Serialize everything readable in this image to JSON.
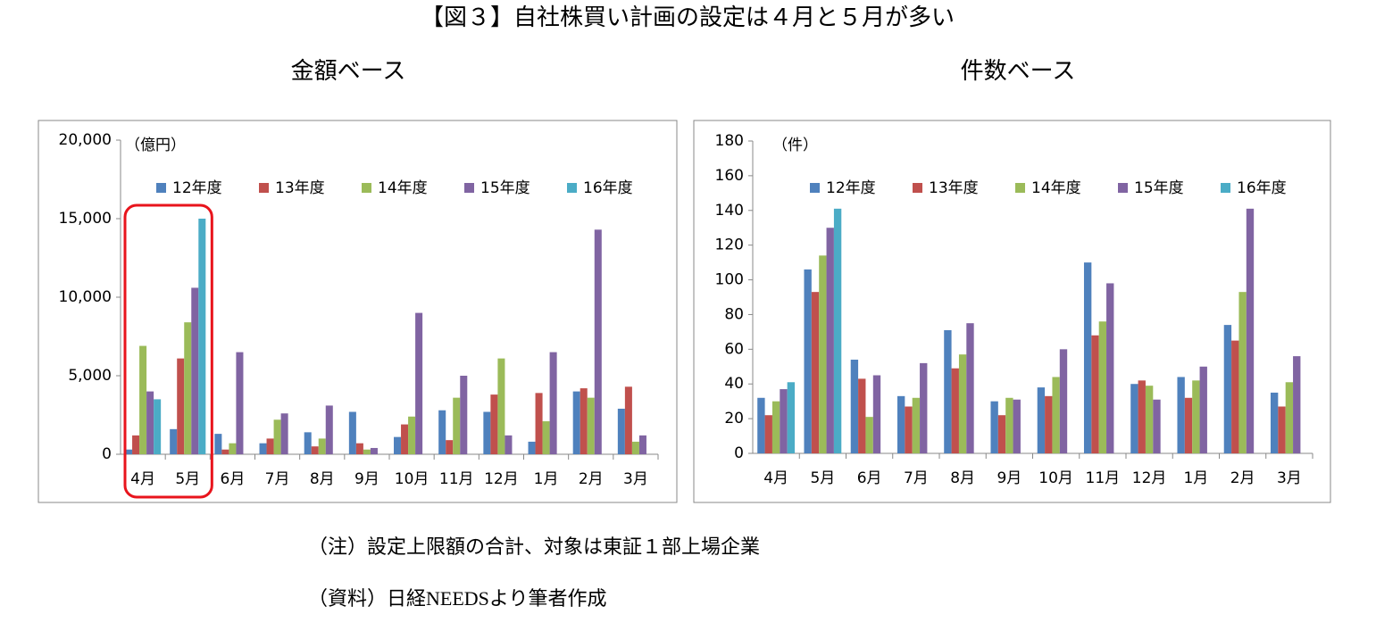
{
  "title": "【図３】自社株買い計画の設定は４月と５月が多い",
  "notes": [
    "（注）設定上限額の合計、対象は東証１部上場企業",
    "（資料）日経NEEDSより筆者作成"
  ],
  "chart_data": [
    {
      "type": "bar",
      "title": "金額ベース",
      "y_label": "（億円）",
      "categories": [
        "4月",
        "5月",
        "6月",
        "7月",
        "8月",
        "9月",
        "10月",
        "11月",
        "12月",
        "1月",
        "2月",
        "3月"
      ],
      "series": [
        {
          "name": "12年度",
          "color": "#4f81bd",
          "values": [
            300,
            1600,
            1300,
            700,
            1400,
            2700,
            1100,
            2800,
            2700,
            800,
            4000,
            2900
          ]
        },
        {
          "name": "13年度",
          "color": "#c0504d",
          "values": [
            1200,
            6100,
            300,
            1000,
            500,
            700,
            1900,
            900,
            3800,
            3900,
            4200,
            4300
          ]
        },
        {
          "name": "14年度",
          "color": "#9bbb59",
          "values": [
            6900,
            8400,
            700,
            2200,
            1000,
            300,
            2400,
            3600,
            6100,
            2100,
            3600,
            800
          ]
        },
        {
          "name": "15年度",
          "color": "#8064a2",
          "values": [
            4000,
            10600,
            6500,
            2600,
            3100,
            400,
            9000,
            5000,
            1200,
            6500,
            14300,
            1200
          ]
        },
        {
          "name": "16年度",
          "color": "#4bacc6",
          "values": [
            3500,
            15000,
            null,
            null,
            null,
            null,
            null,
            null,
            null,
            null,
            null,
            null
          ]
        }
      ],
      "ylim": [
        0,
        20000
      ],
      "yticks": [
        0,
        {
          "value": 5000,
          "label": "5,000"
        },
        {
          "value": 10000,
          "label": "10,000"
        },
        {
          "value": 15000,
          "label": "15,000"
        },
        {
          "value": 20000,
          "label": "20,000"
        }
      ],
      "legend": "top"
    },
    {
      "type": "bar",
      "title": "件数ベース",
      "y_label": "（件）",
      "categories": [
        "4月",
        "5月",
        "6月",
        "7月",
        "8月",
        "9月",
        "10月",
        "11月",
        "12月",
        "1月",
        "2月",
        "3月"
      ],
      "series": [
        {
          "name": "12年度",
          "color": "#4f81bd",
          "values": [
            32,
            106,
            54,
            33,
            71,
            30,
            38,
            110,
            40,
            44,
            74,
            35
          ]
        },
        {
          "name": "13年度",
          "color": "#c0504d",
          "values": [
            22,
            93,
            43,
            27,
            49,
            22,
            33,
            68,
            42,
            32,
            65,
            27
          ]
        },
        {
          "name": "14年度",
          "color": "#9bbb59",
          "values": [
            30,
            114,
            21,
            32,
            57,
            32,
            44,
            76,
            39,
            42,
            93,
            41
          ]
        },
        {
          "name": "15年度",
          "color": "#8064a2",
          "values": [
            37,
            130,
            45,
            52,
            75,
            31,
            60,
            98,
            31,
            50,
            141,
            56
          ]
        },
        {
          "name": "16年度",
          "color": "#4bacc6",
          "values": [
            41,
            141,
            null,
            null,
            null,
            null,
            null,
            null,
            null,
            null,
            null,
            null
          ]
        }
      ],
      "ylim": [
        0,
        180
      ],
      "yticks": [
        0,
        20,
        40,
        60,
        80,
        100,
        120,
        140,
        160,
        180
      ],
      "legend": "top"
    }
  ]
}
